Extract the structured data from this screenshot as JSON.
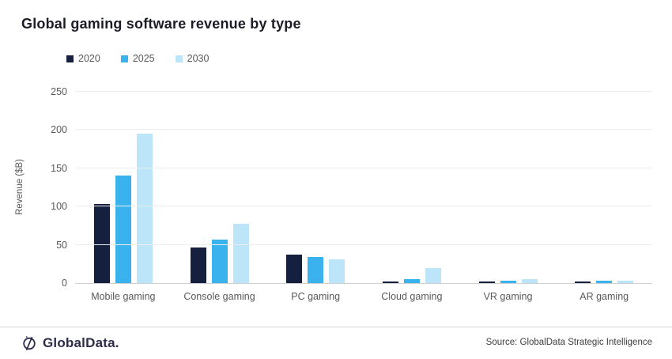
{
  "header": {
    "title": "Global gaming software revenue by type"
  },
  "chart_data": {
    "type": "bar",
    "title": "Global gaming software revenue by type",
    "categories": [
      "Mobile gaming",
      "Console gaming",
      "PC gaming",
      "Cloud gaming",
      "VR gaming",
      "AR gaming"
    ],
    "series": [
      {
        "name": "2020",
        "color": "#14203e",
        "values": [
          103,
          46,
          37,
          2,
          2,
          2
        ]
      },
      {
        "name": "2025",
        "color": "#3ab2ee",
        "values": [
          141,
          57,
          34,
          5,
          3,
          3
        ]
      },
      {
        "name": "2030",
        "color": "#bce5fa",
        "values": [
          195,
          78,
          31,
          20,
          5,
          3
        ]
      }
    ],
    "xlabel": "",
    "ylabel": "Revenue ($B)",
    "yticks": [
      0,
      50,
      100,
      150,
      200,
      250
    ],
    "ylim": [
      0,
      250
    ],
    "grid": true,
    "legend_position": "top-left"
  },
  "footer": {
    "logo_text": "GlobalData.",
    "source": "Source: GlobalData Strategic Intelligence"
  }
}
